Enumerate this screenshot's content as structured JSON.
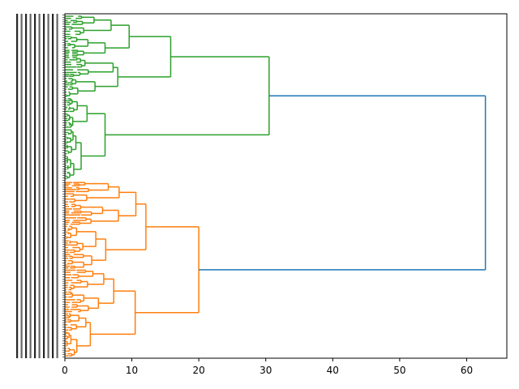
{
  "chart_data": {
    "type": "dendrogram",
    "orientation": "horizontal",
    "title": "",
    "xlabel": "",
    "ylabel": "",
    "xlim": [
      0,
      66
    ],
    "x_ticks": [
      0,
      10,
      20,
      30,
      40,
      50,
      60
    ],
    "x_tick_labels": [
      "0",
      "10",
      "20",
      "30",
      "40",
      "50",
      "60"
    ],
    "grid": false,
    "leaf_count_approx": 150,
    "colors": {
      "cluster_1": "#2ca02c",
      "cluster_2": "#ff7f0e",
      "above_threshold": "#1f77b4"
    },
    "root": {
      "height": 62.8,
      "color": "above_threshold",
      "children": [
        "green_cluster",
        "orange_cluster"
      ]
    },
    "clusters": [
      {
        "id": "green_cluster",
        "color": "cluster_1",
        "merge_height": 30.5,
        "sub_merges": [
          {
            "height": 15.8,
            "children": [
              {
                "height": 9.6,
                "children": [
                  {
                    "height": 6.9
                  },
                  {
                    "height": 6.0
                  }
                ]
              },
              {
                "height": 7.9,
                "children": [
                  {
                    "height": 7.2
                  },
                  {
                    "height": 4.5
                  }
                ]
              }
            ]
          },
          {
            "height": 6.0
          }
        ]
      },
      {
        "id": "orange_cluster",
        "color": "cluster_2",
        "merge_height": 20.0,
        "sub_merges": [
          {
            "height": 12.1,
            "children": [
              {
                "height": 10.6,
                "children": [
                  {
                    "height": 8.1
                  },
                  {
                    "height": 8.0
                  }
                ]
              },
              {
                "height": 6.1
              }
            ]
          },
          {
            "height": 10.5,
            "children": [
              {
                "height": 7.3
              },
              {
                "height": 3.8
              }
            ]
          }
        ]
      }
    ]
  }
}
